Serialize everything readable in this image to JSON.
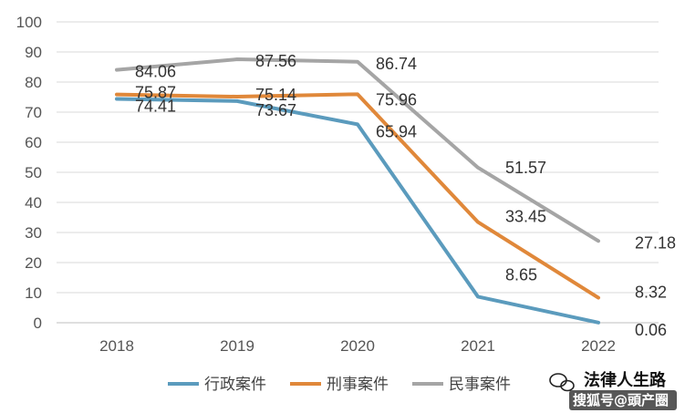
{
  "chart_data": {
    "type": "line",
    "title": "",
    "xlabel": "",
    "ylabel": "",
    "categories": [
      "2018",
      "2019",
      "2020",
      "2021",
      "2022"
    ],
    "ylim": [
      0,
      100
    ],
    "yticks": [
      0,
      10,
      20,
      30,
      40,
      50,
      60,
      70,
      80,
      90,
      100
    ],
    "grid": "horizontal",
    "legend_position": "bottom",
    "series": [
      {
        "name": "行政案件",
        "color": "#5b9bbd",
        "values": [
          74.41,
          73.67,
          65.94,
          8.65,
          0.06
        ],
        "labels": [
          "74.41",
          "73.67",
          "65.94",
          "8.65",
          "0.06"
        ]
      },
      {
        "name": "刑事案件",
        "color": "#e0883a",
        "values": [
          75.87,
          75.14,
          75.96,
          33.45,
          8.32
        ],
        "labels": [
          "75.87",
          "75.14",
          "75.96",
          "33.45",
          "8.32"
        ]
      },
      {
        "name": "民事案件",
        "color": "#a5a5a5",
        "values": [
          84.06,
          87.56,
          86.74,
          51.57,
          27.18
        ],
        "labels": [
          "84.06",
          "87.56",
          "86.74",
          "51.57",
          "27.18"
        ]
      }
    ]
  },
  "watermark": {
    "line1": "法律人生路",
    "line2": "搜狐号@頭产圈"
  }
}
